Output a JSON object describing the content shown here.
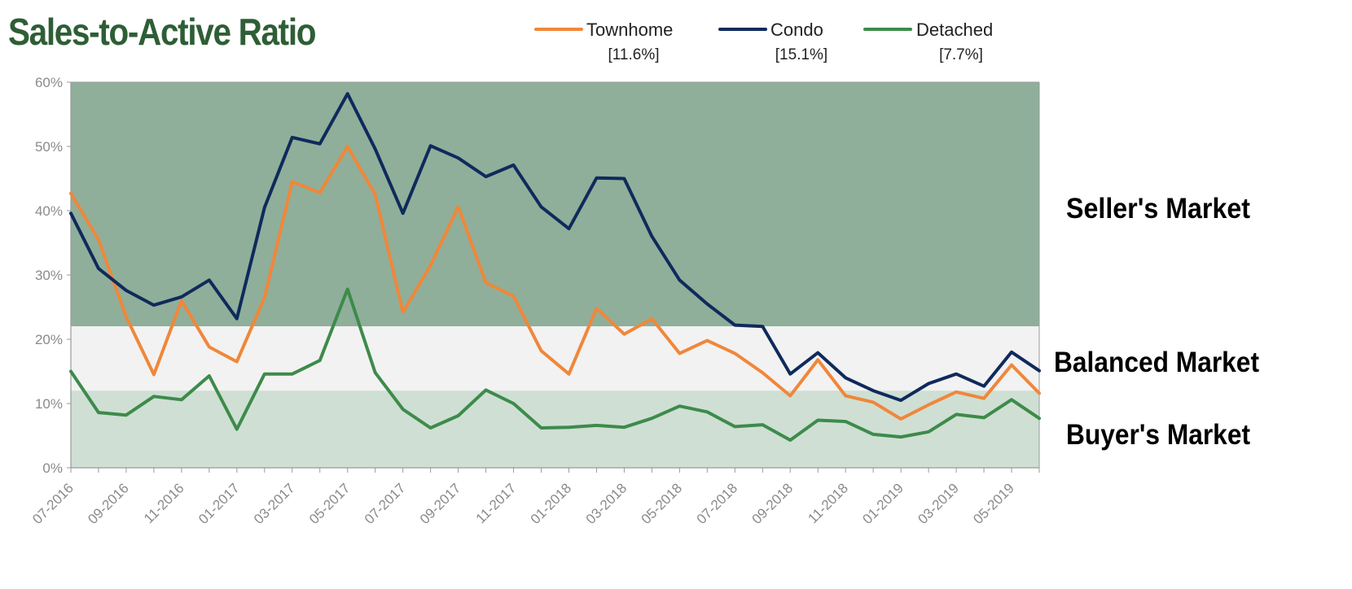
{
  "chart_data": {
    "type": "line",
    "title": "Sales-to-Active Ratio",
    "xlabel": "",
    "ylabel": "",
    "ylim": [
      0,
      60
    ],
    "y_ticks": [
      "0%",
      "10%",
      "20%",
      "30%",
      "40%",
      "50%",
      "60%"
    ],
    "x": [
      "07-2016",
      "08-2016",
      "09-2016",
      "10-2016",
      "11-2016",
      "12-2016",
      "01-2017",
      "02-2017",
      "03-2017",
      "04-2017",
      "05-2017",
      "06-2017",
      "07-2017",
      "08-2017",
      "09-2017",
      "10-2017",
      "11-2017",
      "12-2017",
      "01-2018",
      "02-2018",
      "03-2018",
      "04-2018",
      "05-2018",
      "06-2018",
      "07-2018",
      "08-2018",
      "09-2018",
      "10-2018",
      "11-2018",
      "12-2018",
      "01-2019",
      "02-2019",
      "03-2019",
      "04-2019",
      "05-2019",
      "06-2019"
    ],
    "x_tick_labels": [
      "07-2016",
      "09-2016",
      "11-2016",
      "01-2017",
      "03-2017",
      "05-2017",
      "07-2017",
      "09-2017",
      "11-2017",
      "01-2018",
      "03-2018",
      "05-2018",
      "07-2018",
      "09-2018",
      "11-2018",
      "01-2019",
      "03-2019",
      "05-2019"
    ],
    "grid": false,
    "legend_position": "top",
    "series": [
      {
        "name": "Townhome",
        "current": "[11.6%]",
        "color": "#f0873a",
        "values": [
          42.7,
          35.5,
          23.5,
          14.5,
          26.0,
          18.8,
          16.5,
          26.5,
          44.5,
          42.8,
          50.0,
          42.5,
          24.2,
          31.5,
          40.6,
          28.8,
          26.7,
          18.2,
          14.6,
          24.8,
          20.8,
          23.2,
          17.8,
          19.8,
          17.8,
          14.8,
          11.2,
          16.8,
          11.2,
          10.2,
          7.6,
          9.8,
          11.8,
          10.8,
          16.0,
          11.6
        ]
      },
      {
        "name": "Condo",
        "current": "[15.1%]",
        "color": "#0f2a5c",
        "values": [
          39.6,
          31.0,
          27.6,
          25.3,
          26.6,
          29.2,
          23.2,
          40.5,
          51.4,
          50.4,
          58.2,
          49.6,
          39.6,
          50.1,
          48.2,
          45.3,
          47.1,
          40.6,
          37.2,
          45.1,
          45.0,
          36.0,
          29.2,
          25.5,
          22.2,
          22.0,
          14.6,
          17.9,
          14.0,
          12.0,
          10.5,
          13.1,
          14.6,
          12.7,
          18.0,
          15.1
        ]
      },
      {
        "name": "Detached",
        "current": "[7.7%]",
        "color": "#3d8b4a",
        "values": [
          15.0,
          8.6,
          8.2,
          11.1,
          10.6,
          14.3,
          6.0,
          14.6,
          14.6,
          16.7,
          27.8,
          14.8,
          9.1,
          6.2,
          8.1,
          12.1,
          10.0,
          6.2,
          6.3,
          6.6,
          6.3,
          7.7,
          9.6,
          8.7,
          6.4,
          6.7,
          4.3,
          7.4,
          7.2,
          5.2,
          4.8,
          5.6,
          8.3,
          7.8,
          10.6,
          7.7
        ]
      }
    ],
    "zones": [
      {
        "label": "Seller's Market",
        "from": 22,
        "to": 60,
        "color": "#8faf9a"
      },
      {
        "label": "Balanced Market",
        "from": 12,
        "to": 22,
        "color": "#f2f2f2"
      },
      {
        "label": "Buyer's Market",
        "from": 0,
        "to": 12,
        "color": "#cfdfd4"
      }
    ],
    "title_color": "#2e5e35"
  }
}
